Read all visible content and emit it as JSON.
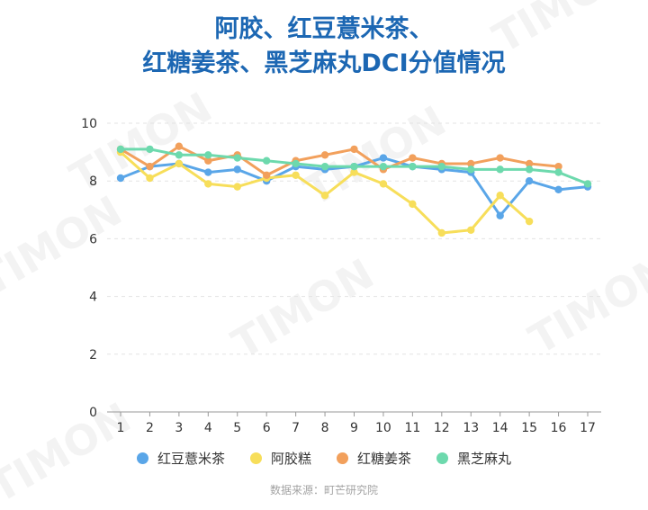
{
  "title_lines": [
    "阿胶、红豆薏米茶、",
    "红糖姜茶、黑芝麻丸DCI分值情况"
  ],
  "source": "数据来源：町芒研究院",
  "watermark": "TIMON",
  "chart_data": {
    "type": "line",
    "title": "阿胶、红豆薏米茶、红糖姜茶、黑芝麻丸DCI分值情况",
    "xlabel": "",
    "ylabel": "",
    "x": [
      1,
      2,
      3,
      4,
      5,
      6,
      7,
      8,
      9,
      10,
      11,
      12,
      13,
      14,
      15,
      16,
      17
    ],
    "ylim": [
      0,
      10
    ],
    "yticks": [
      0,
      2,
      4,
      6,
      8,
      10
    ],
    "grid": true,
    "legend": "bottom",
    "series": [
      {
        "name": "红豆薏米茶",
        "color": "#5aa6e8",
        "values": [
          8.1,
          8.5,
          8.6,
          8.3,
          8.4,
          8.0,
          8.5,
          8.4,
          8.5,
          8.8,
          8.5,
          8.4,
          8.3,
          6.8,
          8.0,
          7.7,
          7.8
        ]
      },
      {
        "name": "阿胶糕",
        "color": "#f7de5a",
        "values": [
          9.0,
          8.1,
          8.6,
          7.9,
          7.8,
          8.1,
          8.2,
          7.5,
          8.3,
          7.9,
          7.2,
          6.2,
          6.3,
          7.5,
          6.6,
          null,
          null
        ]
      },
      {
        "name": "红糖姜茶",
        "color": "#f2a05c",
        "values": [
          9.1,
          8.5,
          9.2,
          8.7,
          8.9,
          8.2,
          8.7,
          8.9,
          9.1,
          8.4,
          8.8,
          8.6,
          8.6,
          8.8,
          8.6,
          8.5,
          null
        ]
      },
      {
        "name": "黑芝麻丸",
        "color": "#6dd9ad",
        "values": [
          9.1,
          9.1,
          8.9,
          8.9,
          8.8,
          8.7,
          8.6,
          8.5,
          8.5,
          8.5,
          8.5,
          8.5,
          8.4,
          8.4,
          8.4,
          8.3,
          7.9
        ]
      }
    ]
  }
}
